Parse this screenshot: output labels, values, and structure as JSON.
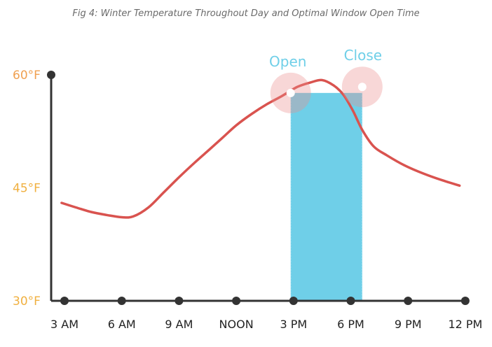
{
  "chart_data": {
    "type": "line",
    "title": "Fig 4: Winter Temperature Throughout Day and Optimal Window Open Time",
    "categories": [
      "3 AM",
      "6 AM",
      "9 AM",
      "NOON",
      "3 PM",
      "6 PM",
      "9 PM",
      "12 PM"
    ],
    "y_ticks": [
      {
        "label": "60°F",
        "value": 60,
        "color": "#f0a050"
      },
      {
        "label": "45°F",
        "value": 45,
        "color": "#f0b040"
      },
      {
        "label": "30°F",
        "value": 30,
        "color": "#f0b040"
      }
    ],
    "ylim": [
      30,
      60
    ],
    "series": [
      {
        "color": "#d9534f",
        "x": [
          2.85,
          3.6,
          4.4,
          5.2,
          6.0,
          6.6,
          7.4,
          8.2,
          9.0,
          9.8,
          10.6,
          11.3,
          12.0,
          12.8,
          13.6,
          14.4,
          15.2,
          15.9,
          16.5,
          17.1,
          17.6,
          18.1,
          18.6,
          19.2,
          19.9,
          20.8,
          21.8,
          22.8,
          23.7
        ],
        "values": [
          43.0,
          42.4,
          41.8,
          41.4,
          41.1,
          41.2,
          42.4,
          44.4,
          46.4,
          48.3,
          50.1,
          51.7,
          53.3,
          54.8,
          56.1,
          57.2,
          58.4,
          59.0,
          59.3,
          58.6,
          57.4,
          55.3,
          52.7,
          50.5,
          49.3,
          48.0,
          46.9,
          46.0,
          45.3
        ]
      }
    ],
    "window": {
      "start_x": 14.85,
      "end_x": 18.6,
      "color": "#6fcfe8"
    },
    "markers": [
      {
        "label": "Open",
        "x": 14.85,
        "y": 57.6,
        "color": "#6fcfe8"
      },
      {
        "label": "Close",
        "x": 18.6,
        "y": 58.4,
        "color": "#6fcfe8"
      }
    ],
    "grid": false
  }
}
